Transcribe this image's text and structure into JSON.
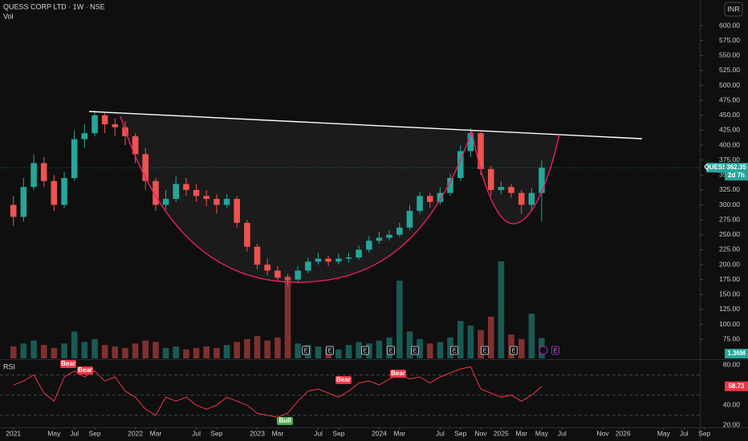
{
  "chart_data": {
    "type": "candlestick",
    "title": "QUESS CORP LTD · 1W · NSE",
    "currency": "INR",
    "symbol": "QUESS",
    "countdown": "2d 7h",
    "x": [
      2021,
      2021.083,
      2021.167,
      2021.25,
      2021.333,
      2021.417,
      2021.5,
      2021.583,
      2021.667,
      2021.75,
      2021.833,
      2021.917,
      2022,
      2022.083,
      2022.167,
      2022.25,
      2022.333,
      2022.417,
      2022.5,
      2022.583,
      2022.667,
      2022.75,
      2022.833,
      2022.917,
      2023,
      2023.083,
      2023.167,
      2023.25,
      2023.333,
      2023.417,
      2023.5,
      2023.583,
      2023.667,
      2023.75,
      2023.833,
      2023.917,
      2024,
      2024.083,
      2024.167,
      2024.25,
      2024.333,
      2024.417,
      2024.5,
      2024.583,
      2024.667,
      2024.75,
      2024.833,
      2024.917,
      2025,
      2025.083,
      2025.167,
      2025.25,
      2025.333
    ],
    "open": [
      300,
      280,
      330,
      370,
      340,
      300,
      345,
      410,
      420,
      450,
      435,
      430,
      415,
      385,
      340,
      300,
      310,
      335,
      325,
      315,
      310,
      300,
      310,
      270,
      230,
      200,
      190,
      178,
      175,
      190,
      205,
      210,
      205,
      210,
      212,
      225,
      240,
      245,
      250,
      262,
      290,
      315,
      305,
      320,
      345,
      390,
      420,
      360,
      325,
      330,
      320,
      300,
      320
    ],
    "high": [
      315,
      345,
      385,
      380,
      350,
      355,
      425,
      435,
      458,
      455,
      445,
      440,
      420,
      395,
      345,
      325,
      348,
      345,
      335,
      325,
      318,
      318,
      315,
      275,
      235,
      210,
      198,
      185,
      198,
      212,
      220,
      215,
      218,
      220,
      232,
      248,
      255,
      258,
      270,
      300,
      322,
      320,
      330,
      352,
      400,
      428,
      422,
      365,
      340,
      335,
      325,
      328,
      375
    ],
    "low": [
      265,
      272,
      325,
      330,
      290,
      295,
      340,
      395,
      415,
      420,
      415,
      400,
      370,
      325,
      290,
      292,
      305,
      315,
      305,
      298,
      285,
      295,
      262,
      222,
      192,
      182,
      172,
      165,
      172,
      186,
      200,
      198,
      200,
      204,
      208,
      220,
      235,
      240,
      246,
      258,
      285,
      295,
      300,
      315,
      340,
      380,
      350,
      315,
      318,
      312,
      285,
      290,
      272
    ],
    "close": [
      280,
      330,
      370,
      340,
      300,
      345,
      410,
      420,
      450,
      435,
      430,
      415,
      385,
      340,
      300,
      310,
      335,
      325,
      315,
      310,
      300,
      310,
      270,
      230,
      200,
      190,
      178,
      175,
      190,
      205,
      210,
      205,
      210,
      212,
      225,
      240,
      245,
      250,
      262,
      290,
      315,
      305,
      320,
      345,
      390,
      420,
      360,
      325,
      330,
      320,
      300,
      320,
      362.35
    ],
    "up_color": "#26a69a",
    "down_color": "#ef5350",
    "xlim": [
      2020.89,
      2026.63
    ],
    "xticks": [
      {
        "value": 2021,
        "label": "2021"
      },
      {
        "value": 2021.333,
        "label": "May"
      },
      {
        "value": 2021.5,
        "label": "Jul"
      },
      {
        "value": 2021.667,
        "label": "Sep"
      },
      {
        "value": 2022,
        "label": "2022"
      },
      {
        "value": 2022.167,
        "label": "Mar"
      },
      {
        "value": 2022.5,
        "label": "Jul"
      },
      {
        "value": 2022.667,
        "label": "Sep"
      },
      {
        "value": 2023,
        "label": "2023"
      },
      {
        "value": 2023.167,
        "label": "Mar"
      },
      {
        "value": 2023.5,
        "label": "Jul"
      },
      {
        "value": 2023.667,
        "label": "Sep"
      },
      {
        "value": 2024,
        "label": "2024"
      },
      {
        "value": 2024.167,
        "label": "Mar"
      },
      {
        "value": 2024.5,
        "label": "Jul"
      },
      {
        "value": 2024.667,
        "label": "Sep"
      },
      {
        "value": 2024.833,
        "label": "Nov"
      },
      {
        "value": 2025,
        "label": "2025"
      },
      {
        "value": 2025.167,
        "label": "Mar"
      },
      {
        "value": 2025.333,
        "label": "May"
      },
      {
        "value": 2025.5,
        "label": "Jul"
      },
      {
        "value": 2025.833,
        "label": "Nov"
      },
      {
        "value": 2026,
        "label": "2026"
      },
      {
        "value": 2026.333,
        "label": "May"
      },
      {
        "value": 2026.5,
        "label": "Jul"
      },
      {
        "value": 2026.667,
        "label": "Sep"
      }
    ],
    "ylim": [
      43,
      643
    ],
    "yticks": [
      {
        "value": 600,
        "label": "600.00"
      },
      {
        "value": 575,
        "label": "575.00"
      },
      {
        "value": 550,
        "label": "550.00"
      },
      {
        "value": 525,
        "label": "525.00"
      },
      {
        "value": 500,
        "label": "500.00"
      },
      {
        "value": 475,
        "label": "475.00"
      },
      {
        "value": 450,
        "label": "450.00"
      },
      {
        "value": 425,
        "label": "425.00"
      },
      {
        "value": 400,
        "label": "400.00"
      },
      {
        "value": 375,
        "label": "375.00"
      },
      {
        "value": 350,
        "label": "350.00"
      },
      {
        "value": 325,
        "label": "325.00"
      },
      {
        "value": 300,
        "label": "300.00"
      },
      {
        "value": 275,
        "label": "275.00"
      },
      {
        "value": 250,
        "label": "250.00"
      },
      {
        "value": 225,
        "label": "225.00"
      },
      {
        "value": 200,
        "label": "200.00"
      },
      {
        "value": 175,
        "label": "175.00"
      },
      {
        "value": 150,
        "label": "150.00"
      },
      {
        "value": 125,
        "label": "125.00"
      },
      {
        "value": 100,
        "label": "100.00"
      },
      {
        "value": 75,
        "label": "75.00"
      }
    ],
    "last": {
      "value": 362.35,
      "label": "362.35"
    },
    "volume": {
      "name": "Vol",
      "values": [
        0.8,
        1.0,
        1.2,
        0.9,
        0.7,
        1.0,
        1.8,
        1.1,
        1.3,
        0.9,
        0.8,
        0.7,
        1.0,
        1.2,
        1.1,
        0.7,
        0.8,
        0.6,
        0.7,
        0.8,
        0.7,
        0.9,
        1.1,
        1.3,
        1.5,
        1.2,
        1.4,
        5.5,
        1.0,
        0.9,
        0.8,
        0.7,
        0.6,
        0.9,
        1.1,
        1.0,
        1.2,
        1.4,
        5.2,
        1.8,
        1.3,
        1.0,
        1.1,
        1.4,
        2.5,
        2.2,
        1.9,
        2.8,
        6.5,
        1.6,
        1.3,
        3.0,
        1.36
      ],
      "ylim": [
        0,
        24
      ],
      "last_label": "1.36M"
    },
    "rsi": {
      "name": "RSI",
      "color": "#f23645",
      "values": [
        60,
        64,
        70,
        52,
        44,
        68,
        74,
        68,
        74,
        64,
        68,
        54,
        48,
        36,
        30,
        48,
        44,
        48,
        40,
        36,
        40,
        48,
        44,
        40,
        32,
        30,
        28,
        32,
        44,
        54,
        56,
        52,
        48,
        54,
        62,
        64,
        60,
        66,
        70,
        66,
        68,
        62,
        68,
        72,
        76,
        78,
        56,
        52,
        48,
        50,
        44,
        50,
        58.73
      ],
      "last_label": "58.73",
      "ylim": [
        18,
        84
      ],
      "yticks": [
        {
          "value": 80,
          "label": "80.00"
        },
        {
          "value": 40,
          "label": "40.00"
        },
        {
          "value": 20,
          "label": "20.00"
        }
      ],
      "bands": [
        70,
        50,
        30
      ]
    },
    "signals": [
      "Bear",
      "Bear",
      "Bull",
      "Bear",
      "Bear"
    ],
    "earnings_marker": "E"
  }
}
